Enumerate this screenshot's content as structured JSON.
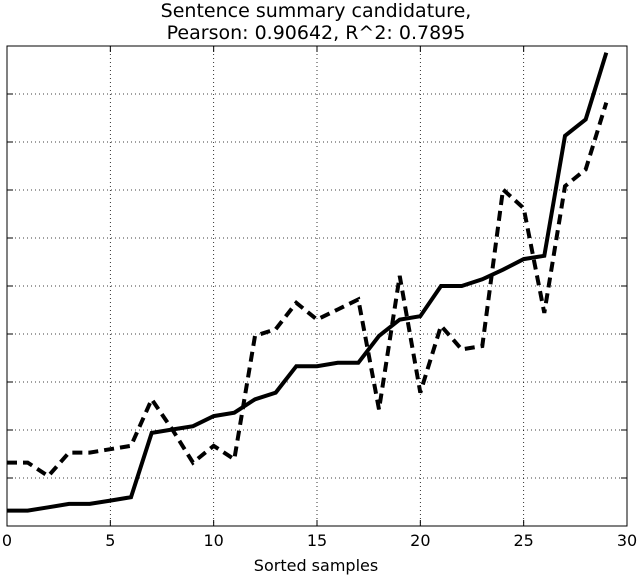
{
  "chart_data": {
    "type": "line",
    "title": [
      "Sentence summary candidature,",
      "Pearson: 0.90642, R^2: 0.7895"
    ],
    "xlabel": "Sorted samples",
    "ylabel": "",
    "xlim": [
      0,
      30
    ],
    "ylim": [
      0,
      1
    ],
    "x_ticks": [
      0,
      5,
      10,
      15,
      20,
      25,
      30
    ],
    "y_ticks": [
      0.0,
      0.1,
      0.2,
      0.3,
      0.4,
      0.5,
      0.6,
      0.7,
      0.8,
      0.9,
      1.0
    ],
    "y_tick_labels_visible": false,
    "grid": true,
    "legend": "none",
    "x": [
      0,
      1,
      2,
      3,
      4,
      5,
      6,
      7,
      8,
      9,
      10,
      11,
      12,
      13,
      14,
      15,
      16,
      17,
      18,
      19,
      20,
      21,
      22,
      23,
      24,
      25,
      26,
      27,
      28,
      29
    ],
    "series": [
      {
        "style": "solid",
        "color": "#000000",
        "values": [
          0.032,
          0.032,
          0.039,
          0.046,
          0.046,
          0.053,
          0.06,
          0.194,
          0.201,
          0.208,
          0.229,
          0.236,
          0.264,
          0.278,
          0.333,
          0.333,
          0.34,
          0.34,
          0.396,
          0.43,
          0.437,
          0.5,
          0.5,
          0.514,
          0.534,
          0.556,
          0.563,
          0.813,
          0.847,
          0.986
        ]
      },
      {
        "style": "dashed",
        "color": "#000000",
        "values": [
          0.132,
          0.132,
          0.104,
          0.153,
          0.153,
          0.16,
          0.167,
          0.264,
          0.201,
          0.132,
          0.167,
          0.139,
          0.396,
          0.41,
          0.465,
          0.43,
          0.451,
          0.472,
          0.243,
          0.521,
          0.278,
          0.417,
          0.368,
          0.375,
          0.701,
          0.662,
          0.444,
          0.708,
          0.743,
          0.882
        ]
      }
    ]
  }
}
